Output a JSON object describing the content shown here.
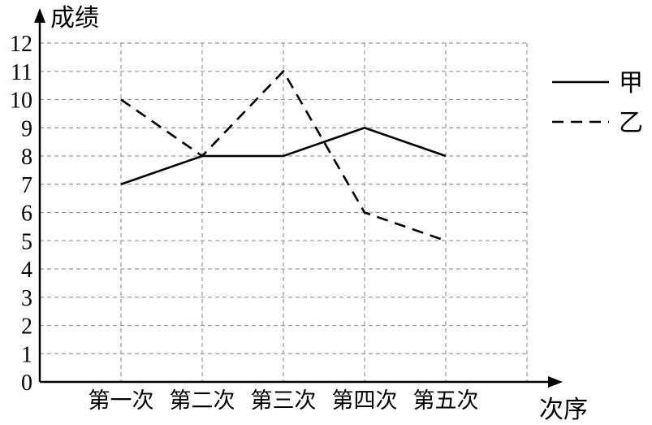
{
  "chart_data": {
    "type": "line",
    "ylabel": "成绩",
    "xlabel": "次序",
    "categories": [
      "第一次",
      "第二次",
      "第三次",
      "第四次",
      "第五次"
    ],
    "ylim": [
      0,
      12
    ],
    "yticks": [
      0,
      1,
      2,
      3,
      4,
      5,
      6,
      7,
      8,
      9,
      10,
      11,
      12
    ],
    "grid": "dashed",
    "legend_position": "top-right",
    "series": [
      {
        "name": "甲",
        "style": "solid",
        "values": [
          7,
          8,
          8,
          9,
          8
        ]
      },
      {
        "name": "乙",
        "style": "dashed",
        "values": [
          10,
          8,
          11,
          6,
          5
        ]
      }
    ]
  }
}
